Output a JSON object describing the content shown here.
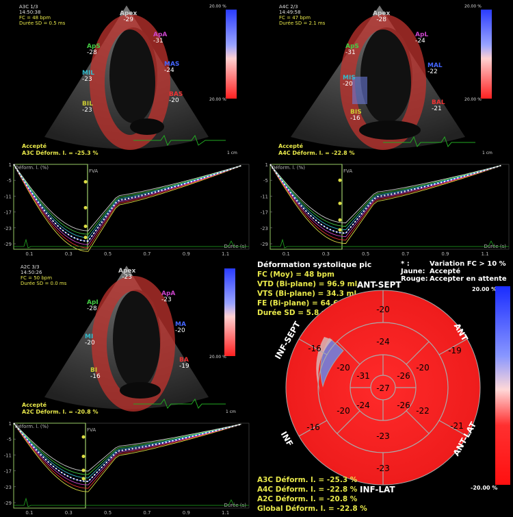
{
  "views": [
    {
      "id": "a3c",
      "header": [
        "A3C 1/3",
        "14:50:38",
        "FC = 48 bpm",
        "Durée SD = 0.5 ms"
      ],
      "status": "Accepté",
      "deform": "A3C Déform. l. = -25.3 %",
      "segments": [
        {
          "code": "Apex",
          "value": "-29",
          "color": "#d0d0d0"
        },
        {
          "code": "ApA",
          "value": "-31",
          "color": "#cc44cc"
        },
        {
          "code": "ApS",
          "value": "-28",
          "color": "#44cc44"
        },
        {
          "code": "MAS",
          "value": "-24",
          "color": "#4466ff"
        },
        {
          "code": "MIL",
          "value": "-23",
          "color": "#33bbcc"
        },
        {
          "code": "BAS",
          "value": "-20",
          "color": "#ee3333"
        },
        {
          "code": "BIL",
          "value": "-23",
          "color": "#cccc33"
        }
      ],
      "scale_top": "20.00 %",
      "scale_bottom": "20.00 %",
      "cm": "1 cm"
    },
    {
      "id": "a4c",
      "header": [
        "A4C 2/3",
        "14:49:58",
        "FC = 47 bpm",
        "Durée SD = 2.1 ms"
      ],
      "status": "Accepté",
      "deform": "A4C Déform. l. = -22.8 %",
      "segments": [
        {
          "code": "Apex",
          "value": "-28",
          "color": "#d0d0d0"
        },
        {
          "code": "ApL",
          "value": "-24",
          "color": "#cc44cc"
        },
        {
          "code": "ApS",
          "value": "-31",
          "color": "#44cc44"
        },
        {
          "code": "MAL",
          "value": "-22",
          "color": "#4466ff"
        },
        {
          "code": "MIS",
          "value": "-20",
          "color": "#33bbcc"
        },
        {
          "code": "BAL",
          "value": "-21",
          "color": "#ee3333"
        },
        {
          "code": "BIS",
          "value": "-16",
          "color": "#cccc33"
        }
      ],
      "scale_top": "20.00 %",
      "scale_bottom": "20.00 %",
      "cm": "1 cm"
    },
    {
      "id": "a2c",
      "header": [
        "A2C 3/3",
        "14:50:26",
        "FC = 50 bpm",
        "Durée SD = 0.0 ms"
      ],
      "status": "Accepté",
      "deform": "A2C Déform. l. = -20.8 %",
      "segments": [
        {
          "code": "Apex",
          "value": "-23",
          "color": "#d0d0d0"
        },
        {
          "code": "ApA",
          "value": "-23",
          "color": "#cc44cc"
        },
        {
          "code": "ApI",
          "value": "-28",
          "color": "#44cc44"
        },
        {
          "code": "MA",
          "value": "-20",
          "color": "#4466ff"
        },
        {
          "code": "MI",
          "value": "-20",
          "color": "#33bbcc"
        },
        {
          "code": "BA",
          "value": "-19",
          "color": "#ee3333"
        },
        {
          "code": "BI",
          "value": "-16",
          "color": "#cccc33"
        }
      ],
      "scale_top": "",
      "scale_bottom": "20.00 %",
      "cm": "1 cm"
    }
  ],
  "graph": {
    "ylabel": "Déform. l. (%)",
    "yticks": [
      "1",
      "-5",
      "-11",
      "-17",
      "-23",
      "-29"
    ],
    "xticks": [
      "0.1",
      "0.3",
      "0.5",
      "0.7",
      "0.9",
      "1.1"
    ],
    "xlabel": "Durée (s)",
    "marker": "FVA"
  },
  "summary": {
    "title": "Déformation systolique pic",
    "lines": [
      "FC (Moy) = 48 bpm",
      "VTD (Bi-plane) = 96.9 ml",
      "VTS (Bi-plane) = 34.3 ml",
      "FE (Bi-plane) = 64.6 %",
      "Durée SD = 5.8 ms"
    ],
    "legend": [
      {
        "key": "*   :",
        "text": "Variation FC > 10 %"
      },
      {
        "key": "Jaune:",
        "text": "Accepté"
      },
      {
        "key": "Rouge:",
        "text": "Accepter en attente"
      }
    ],
    "footer": [
      "A3C Déform. l. = -25.3 %",
      "A4C Déform. l. = -22.8 %",
      "A2C Déform. l. = -20.8 %",
      "Global Déform. l. = -22.8 %"
    ],
    "scale_top": "20.00 %",
    "scale_bottom": "-20.00 %"
  },
  "bullseye": {
    "wall_labels": {
      "top": "ANT-SEPT",
      "top_right": "ANT",
      "right": "ANT-LAT",
      "bottom": "INF-LAT",
      "left": "INF",
      "top_left": "INF-SEPT"
    },
    "basal": [
      "-20",
      "-19",
      "-21",
      "-23",
      "-16",
      "-16"
    ],
    "mid": [
      "-24",
      "-20",
      "-22",
      "-23",
      "-20",
      "-20"
    ],
    "apical": [
      "-31",
      "-26",
      "-26",
      "-24"
    ],
    "apex": "-27"
  }
}
